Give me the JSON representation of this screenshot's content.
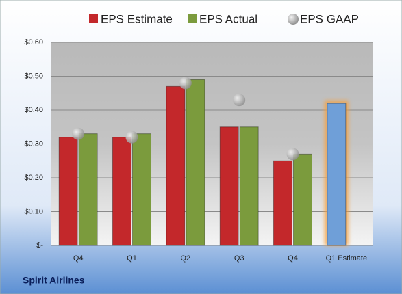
{
  "chart_data": {
    "type": "bar",
    "title": "Spirit Airlines",
    "categories": [
      "Q4",
      "Q1",
      "Q2",
      "Q3",
      "Q4",
      "Q1 Estimate"
    ],
    "series": [
      {
        "name": "EPS Estimate",
        "type": "bar",
        "color": "#c3282b",
        "colors": [
          "#c3282b",
          "#c3282b",
          "#c3282b",
          "#c3282b",
          "#c3282b",
          "#6f9fd8"
        ],
        "values": [
          0.32,
          0.32,
          0.47,
          0.35,
          0.25,
          0.42
        ]
      },
      {
        "name": "EPS Actual",
        "type": "bar",
        "color": "#7b9b3d",
        "values": [
          0.33,
          0.33,
          0.49,
          0.35,
          0.27,
          null
        ]
      },
      {
        "name": "EPS GAAP",
        "type": "scatter",
        "color": "#a9a9a9",
        "values": [
          0.33,
          0.32,
          0.48,
          0.43,
          0.27,
          null
        ]
      }
    ],
    "ylim": [
      0,
      0.6
    ],
    "yticks": [
      {
        "value": 0,
        "label": "$-"
      },
      {
        "value": 0.1,
        "label": "$0.10"
      },
      {
        "value": 0.2,
        "label": "$0.20"
      },
      {
        "value": 0.3,
        "label": "$0.30"
      },
      {
        "value": 0.4,
        "label": "$0.40"
      },
      {
        "value": 0.5,
        "label": "$0.50"
      },
      {
        "value": 0.6,
        "label": "$0.60"
      }
    ],
    "grid": true,
    "legend": "top"
  }
}
